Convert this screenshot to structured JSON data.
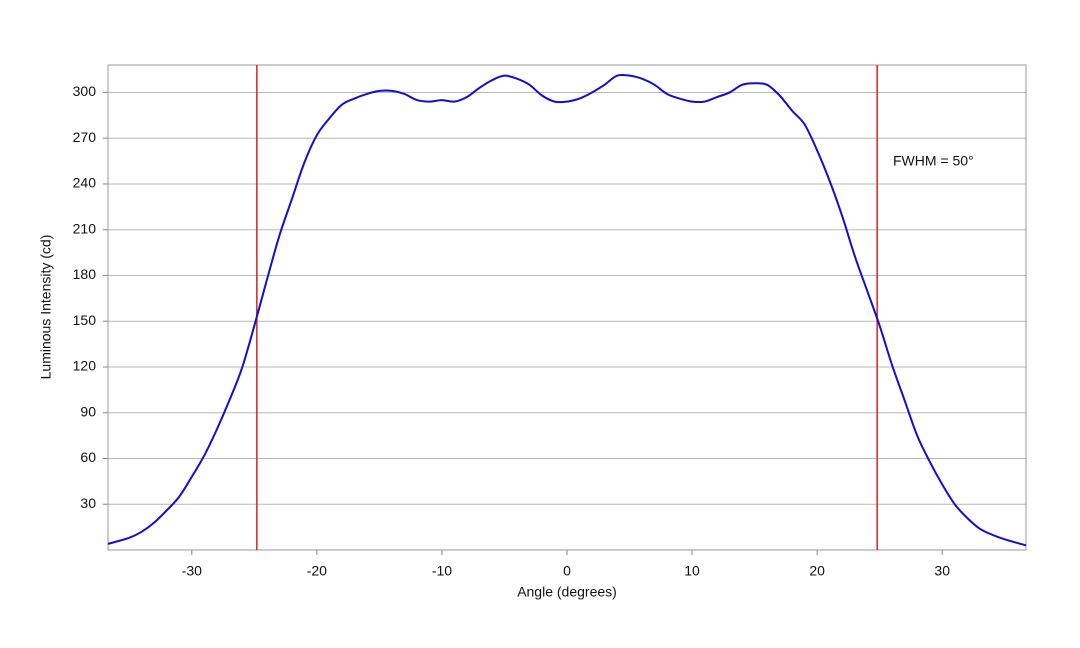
{
  "chart_data": {
    "type": "line",
    "x_label": "Angle (degrees)",
    "y_label": "Luminous Intensity (cd)",
    "annotation": "FWHM = 50°",
    "x": [
      -36.7,
      -35,
      -34,
      -33,
      -32,
      -31,
      -30,
      -29,
      -28,
      -27,
      -26,
      -25,
      -24,
      -23,
      -22,
      -21,
      -20,
      -19,
      -18,
      -17,
      -16,
      -15,
      -14,
      -13,
      -12,
      -11,
      -10,
      -9,
      -8,
      -7,
      -6,
      -5,
      -4,
      -3,
      -2,
      -1,
      0,
      1,
      2,
      3,
      4,
      5,
      6,
      7,
      8,
      9,
      10,
      11,
      12,
      13,
      14,
      15,
      16,
      17,
      18,
      19,
      20,
      21,
      22,
      23,
      24,
      25,
      26,
      27,
      28,
      29,
      30,
      31,
      32,
      33,
      34,
      35,
      36.7
    ],
    "series": [
      {
        "color": "#1010cc",
        "values": [
          4,
          8,
          12,
          18,
          26,
          35,
          48,
          62,
          79,
          98,
          119,
          147,
          177,
          206,
          230,
          254,
          272,
          283,
          292,
          296,
          299,
          301,
          301,
          299,
          295,
          294,
          295,
          294,
          297,
          303,
          308,
          311,
          309,
          305,
          298,
          294,
          294,
          296,
          300,
          305,
          311,
          311,
          309,
          305,
          299,
          296,
          294,
          294,
          297,
          300,
          305,
          306,
          305,
          298,
          288,
          279,
          262,
          242,
          219,
          193,
          170,
          147,
          121,
          98,
          75,
          58,
          43,
          30,
          21,
          14,
          10,
          7,
          3
        ]
      }
    ],
    "vlines": [
      -24.8,
      24.8
    ],
    "vline_color": "#e02020",
    "xlim": [
      -36.7,
      36.7
    ],
    "ylim": [
      0,
      318
    ],
    "xticks": [
      -30,
      -20,
      -10,
      0,
      10,
      20,
      30
    ],
    "yticks": [
      30,
      60,
      90,
      120,
      150,
      180,
      210,
      240,
      270,
      300
    ],
    "grid": true
  }
}
